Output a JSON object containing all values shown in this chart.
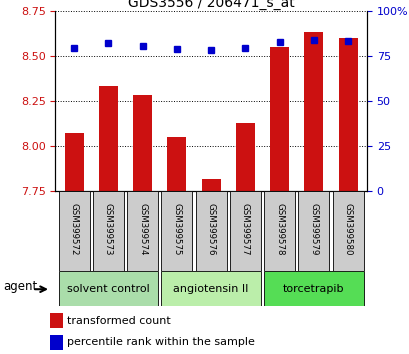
{
  "title": "GDS3556 / 206471_s_at",
  "samples": [
    "GSM399572",
    "GSM399573",
    "GSM399574",
    "GSM399575",
    "GSM399576",
    "GSM399577",
    "GSM399578",
    "GSM399579",
    "GSM399580"
  ],
  "red_values": [
    8.07,
    8.33,
    8.28,
    8.05,
    7.82,
    8.13,
    8.55,
    8.63,
    8.6
  ],
  "blue_values": [
    79.5,
    82.0,
    80.5,
    79.0,
    78.0,
    79.5,
    82.5,
    83.5,
    83.0
  ],
  "ylim_left": [
    7.75,
    8.75
  ],
  "ylim_right": [
    0,
    100
  ],
  "yticks_left": [
    7.75,
    8.0,
    8.25,
    8.5,
    8.75
  ],
  "yticks_right": [
    0,
    25,
    50,
    75,
    100
  ],
  "ytick_labels_right": [
    "0",
    "25",
    "50",
    "75",
    "100%"
  ],
  "bar_color": "#cc1111",
  "dot_color": "#0000cc",
  "groups": [
    {
      "label": "solvent control",
      "indices": [
        0,
        1,
        2
      ],
      "color": "#aaddaa"
    },
    {
      "label": "angiotensin II",
      "indices": [
        3,
        4,
        5
      ],
      "color": "#bbeeaa"
    },
    {
      "label": "torcetrapib",
      "indices": [
        6,
        7,
        8
      ],
      "color": "#55dd55"
    }
  ],
  "agent_label": "agent",
  "legend_red": "transformed count",
  "legend_blue": "percentile rank within the sample",
  "bar_color_legend": "#cc1111",
  "dot_color_legend": "#0000cc",
  "tick_color_left": "#cc1111",
  "tick_color_right": "#0000cc",
  "bar_width": 0.55,
  "sample_bg": "#cccccc",
  "plot_bg": "#ffffff"
}
